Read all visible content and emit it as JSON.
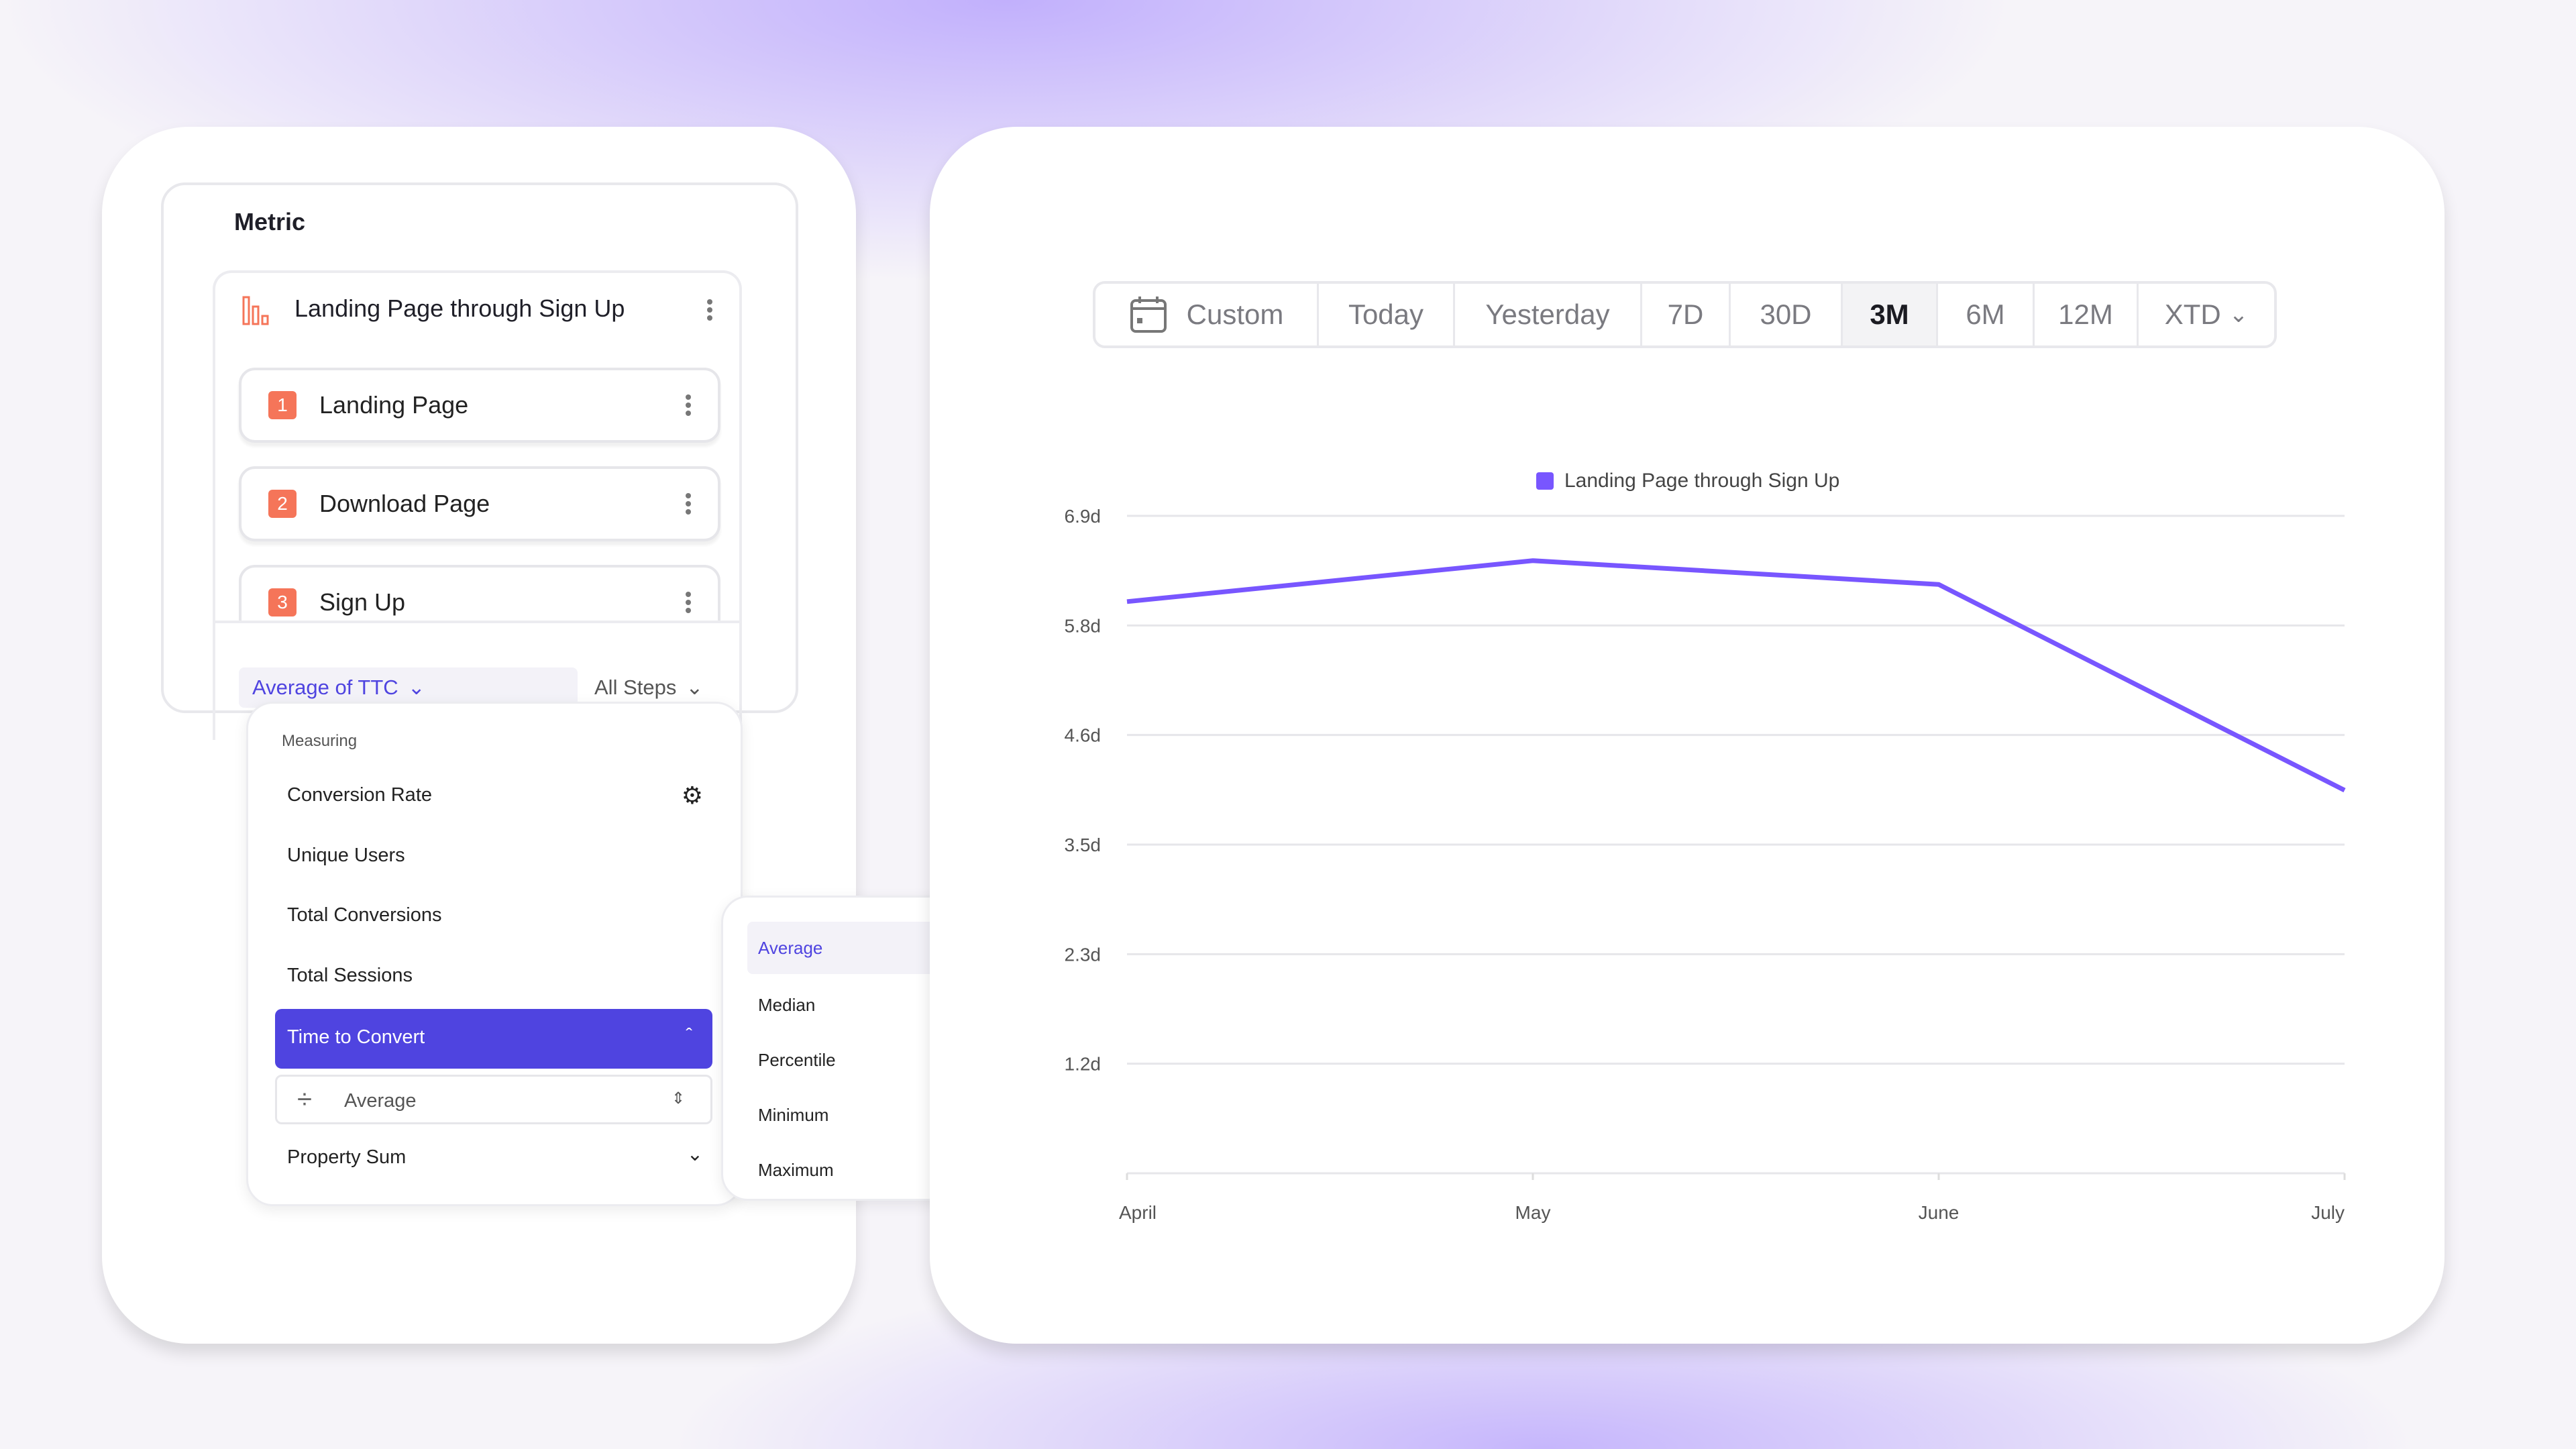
{
  "metric_panel": {
    "title": "Metric",
    "funnel": {
      "name": "Landing Page through Sign Up",
      "icon": "funnel-bars-icon",
      "steps": [
        {
          "number": "1",
          "label": "Landing Page"
        },
        {
          "number": "2",
          "label": "Download Page"
        },
        {
          "number": "3",
          "label": "Sign Up"
        }
      ]
    },
    "measure_selector": "Average of TTC",
    "steps_selector": "All Steps"
  },
  "measuring_menu": {
    "heading": "Measuring",
    "items": [
      "Conversion Rate",
      "Unique Users",
      "Total Conversions",
      "Total Sessions"
    ],
    "selected": "Time to Convert",
    "aggregation_value": "Average",
    "last_item": "Property Sum"
  },
  "aggregation_submenu": {
    "items": [
      "Average",
      "Median",
      "Percentile",
      "Minimum",
      "Maximum"
    ],
    "selected": "Average"
  },
  "time_range": {
    "options": [
      "Custom",
      "Today",
      "Yesterday",
      "7D",
      "30D",
      "3M",
      "6M",
      "12M",
      "XTD"
    ],
    "selected": "3M"
  },
  "colors": {
    "accent": "#4F44E0",
    "line": "#7856FF",
    "step_badge": "#F57559"
  },
  "chart_data": {
    "type": "line",
    "categories": [
      "April",
      "May",
      "June",
      "July"
    ],
    "series": [
      {
        "name": "Landing Page through Sign Up",
        "values": [
          6.0,
          6.43,
          6.18,
          4.02
        ]
      }
    ],
    "y_ticks": [
      {
        "v": 6.9,
        "label": "6.9d"
      },
      {
        "v": 5.75,
        "label": "5.8d"
      },
      {
        "v": 4.6,
        "label": "4.6d"
      },
      {
        "v": 3.45,
        "label": "3.5d"
      },
      {
        "v": 2.3,
        "label": "2.3d"
      },
      {
        "v": 1.15,
        "label": "1.2d"
      }
    ],
    "ylim": [
      0,
      6.9
    ],
    "grid": true,
    "legend": "top-center"
  }
}
